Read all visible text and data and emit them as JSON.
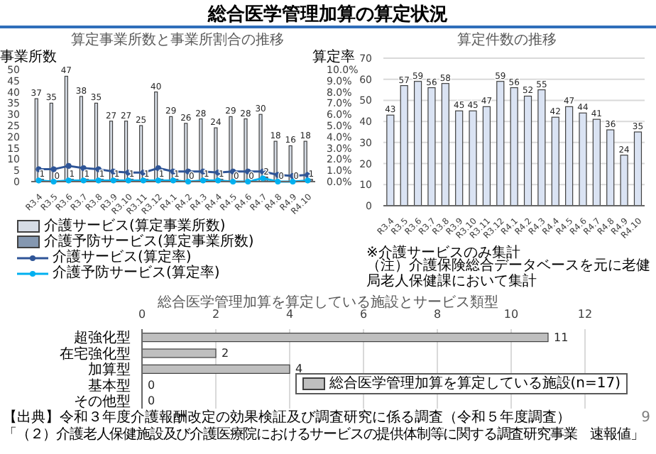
{
  "chart_data": [
    {
      "type": "bar",
      "title": "算定事業所数と事業所割合の推移",
      "annotations": [
        "総合医学管理加算の算定状況"
      ],
      "ylabel": "事業所数",
      "y2label": "算定率",
      "categories": [
        "R3.4",
        "R3.5",
        "R3.6",
        "R3.7",
        "R3.8",
        "R3.9",
        "R3.10",
        "R3.11",
        "R3.12",
        "R4.1",
        "R4.2",
        "R4.3",
        "R4.4",
        "R4.5",
        "R4.6",
        "R4.7",
        "R4.8",
        "R4.9",
        "R4.10"
      ],
      "series": [
        {
          "name": "介護サービス(算定事業所数)",
          "color": "#d6dce5",
          "values": [
            37,
            35,
            47,
            38,
            35,
            27,
            27,
            25,
            40,
            29,
            26,
            28,
            24,
            29,
            28,
            30,
            18,
            16,
            18
          ],
          "value_labels": [
            "37",
            "35",
            "47",
            "38",
            "35",
            "27",
            "27",
            "25",
            "40",
            "29",
            "26",
            "28",
            "24",
            "29",
            "28",
            "30",
            "18",
            "16",
            "18"
          ]
        },
        {
          "name": "介護予防サービス(算定事業所数)",
          "color": "#8497b0",
          "values": [
            1,
            0,
            1,
            1,
            1,
            1,
            1,
            1,
            1,
            1,
            0,
            1,
            1,
            0,
            0,
            2,
            0,
            0,
            1
          ],
          "value_labels": [
            "1",
            "0",
            "1",
            "1",
            "1",
            "1",
            "1",
            "1",
            "1",
            "1",
            "0",
            "1",
            "1",
            "0",
            "0",
            "2",
            "0",
            "0",
            "1"
          ]
        },
        {
          "name": "介護サービス(算定率)",
          "type": "line",
          "axis": "y2",
          "marker": "circle",
          "color": "#2f5597",
          "values": [
            1.1,
            1.1,
            1.4,
            1.2,
            1.1,
            0.9,
            0.8,
            0.8,
            1.2,
            0.9,
            0.9,
            0.9,
            0.8,
            0.9,
            0.9,
            0.9,
            0.6,
            0.5,
            0.6
          ]
        },
        {
          "name": "介護予防サービス(算定率)",
          "type": "line",
          "axis": "y2",
          "marker": "circle",
          "color": "#00b0f0",
          "values": [
            0.1,
            0,
            0.1,
            0.1,
            0.1,
            0.1,
            0.1,
            0.1,
            0.1,
            0.1,
            0,
            0.1,
            0.1,
            0,
            0,
            0.3,
            0,
            0,
            0.1
          ]
        }
      ],
      "ylim": [
        0,
        50
      ],
      "yticks": [
        0,
        5,
        10,
        15,
        20,
        25,
        30,
        35,
        40,
        45,
        50
      ],
      "y2lim": [
        0,
        10
      ],
      "y2ticks": [
        {
          "value": 0,
          "label": "0.0%"
        },
        {
          "value": 1,
          "label": "1.0%"
        },
        {
          "value": 2,
          "label": "2.0%"
        },
        {
          "value": 3,
          "label": "3.0%"
        },
        {
          "value": 4,
          "label": "4.0%"
        },
        {
          "value": 5,
          "label": "5.0%"
        },
        {
          "value": 6,
          "label": "6.0%"
        },
        {
          "value": 7,
          "label": "7.0%"
        },
        {
          "value": 8,
          "label": "8.0%"
        },
        {
          "value": 9,
          "label": "9.0%"
        },
        {
          "value": 10,
          "label": "10.0%"
        }
      ],
      "legend": "bottom"
    },
    {
      "type": "bar",
      "title": "算定件数の推移",
      "annotations": [
        "※介護サービスのみ集計",
        "（注）介護保険総合データベースを元に老健局老人保健課において集計"
      ],
      "categories": [
        "R3.4",
        "R3.5",
        "R3.6",
        "R3.7",
        "R3.8",
        "R3.9",
        "R3.10",
        "R3.11",
        "R3.12",
        "R4.1",
        "R4.2",
        "R4.3",
        "R4.4",
        "R4.5",
        "R4.6",
        "R4.7",
        "R4.8",
        "R4.9",
        "R4.10"
      ],
      "values": [
        43,
        57,
        59,
        56,
        58,
        45,
        45,
        47,
        59,
        56,
        52,
        55,
        42,
        47,
        44,
        41,
        36,
        24,
        35
      ],
      "color": "#dae3f3",
      "ylim": [
        0,
        70
      ],
      "yticks": [
        0,
        10,
        20,
        30,
        40,
        50,
        60,
        70
      ],
      "grid": "y",
      "data_labels": true
    },
    {
      "type": "bar",
      "orientation": "horizontal",
      "title": "総合医学管理加算を算定している施設とサービス類型",
      "annotations": [
        "【出典】令和３年度介護報酬改定の効果検証及び調査研究に係る調査（令和５年度調査）",
        "「（２）介護老人保健施設及び介護医療院におけるサービスの提供体制等に関する調査研究事業　速報値」",
        "9"
      ],
      "categories": [
        "超強化型",
        "在宅強化型",
        "加算型",
        "基本型",
        "その他型"
      ],
      "series": [
        {
          "name": "総合医学管理加算を算定している施設(n=17)",
          "color": "#bfbfbf",
          "values": [
            11,
            2,
            4,
            0,
            0
          ]
        }
      ],
      "xlim": [
        0,
        12
      ],
      "xticks": [
        0,
        2,
        4,
        6,
        8,
        10,
        12
      ],
      "grid": "x",
      "data_labels": true,
      "legend": "bottom right"
    }
  ]
}
